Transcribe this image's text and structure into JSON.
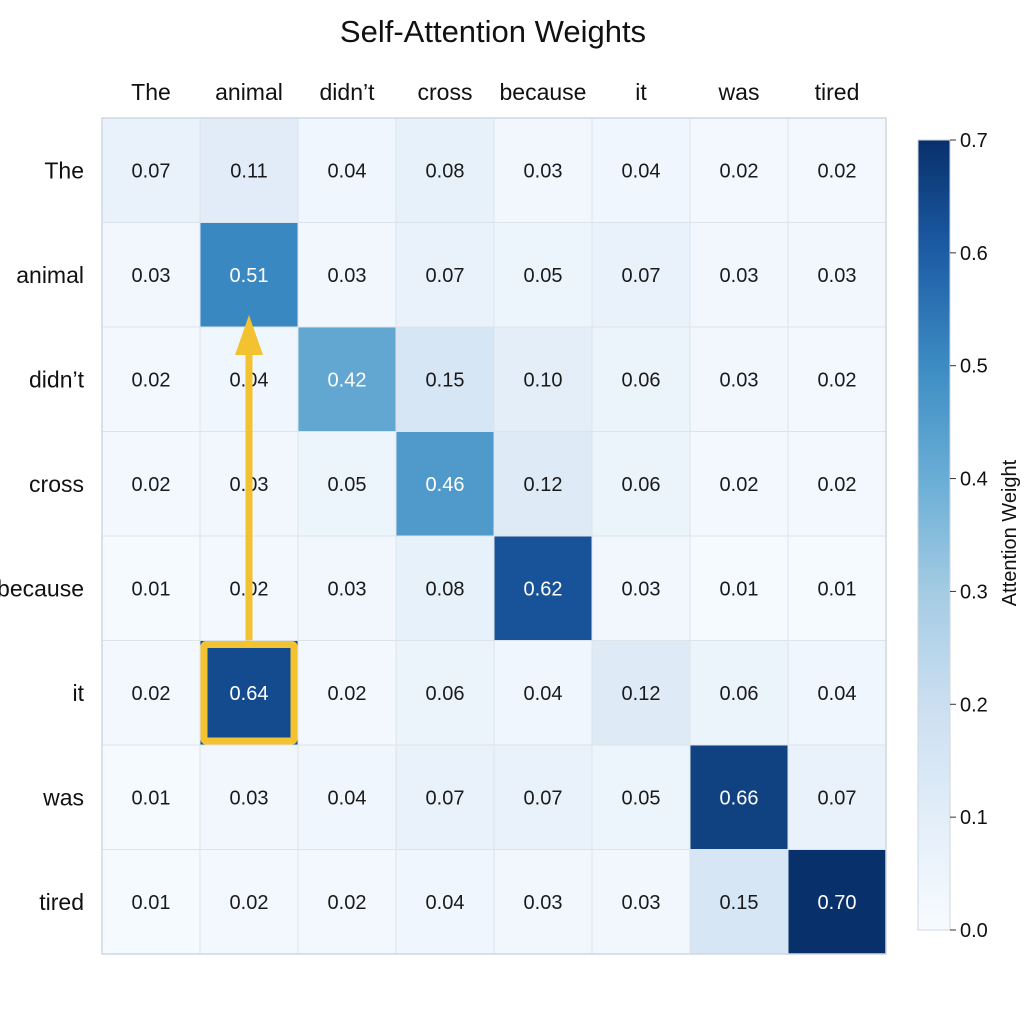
{
  "chart_data": {
    "type": "heatmap",
    "title": "Self-Attention Weights",
    "x_tokens": [
      "The",
      "animal",
      "didn’t",
      "cross",
      "because",
      "it",
      "was",
      "tired"
    ],
    "y_tokens": [
      "The",
      "animal",
      "didn’t",
      "cross",
      "because",
      "it",
      "was",
      "tired"
    ],
    "values": [
      [
        0.07,
        0.11,
        0.04,
        0.08,
        0.03,
        0.04,
        0.02,
        0.02
      ],
      [
        0.03,
        0.51,
        0.03,
        0.07,
        0.05,
        0.07,
        0.03,
        0.03
      ],
      [
        0.02,
        0.04,
        0.42,
        0.15,
        0.1,
        0.06,
        0.03,
        0.02
      ],
      [
        0.02,
        0.03,
        0.05,
        0.46,
        0.12,
        0.06,
        0.02,
        0.02
      ],
      [
        0.01,
        0.02,
        0.03,
        0.08,
        0.62,
        0.03,
        0.01,
        0.01
      ],
      [
        0.02,
        0.64,
        0.02,
        0.06,
        0.04,
        0.12,
        0.06,
        0.04
      ],
      [
        0.01,
        0.03,
        0.04,
        0.07,
        0.07,
        0.05,
        0.66,
        0.07
      ],
      [
        0.01,
        0.02,
        0.02,
        0.04,
        0.03,
        0.03,
        0.15,
        0.7
      ]
    ],
    "value_labels": [
      [
        "0.07",
        "0.11",
        "0.04",
        "0.08",
        "0.03",
        "0.04",
        "0.02",
        "0.02"
      ],
      [
        "0.03",
        "0.51",
        "0.03",
        "0.07",
        "0.05",
        "0.07",
        "0.03",
        "0.03"
      ],
      [
        "0.02",
        "0.04",
        "0.42",
        "0.15",
        "0.10",
        "0.06",
        "0.03",
        "0.02"
      ],
      [
        "0.02",
        "0.03",
        "0.05",
        "0.46",
        "0.12",
        "0.06",
        "0.02",
        "0.02"
      ],
      [
        "0.01",
        "0.02",
        "0.03",
        "0.08",
        "0.62",
        "0.03",
        "0.01",
        "0.01"
      ],
      [
        "0.02",
        "0.64",
        "0.02",
        "0.06",
        "0.04",
        "0.12",
        "0.06",
        "0.04"
      ],
      [
        "0.01",
        "0.03",
        "0.04",
        "0.07",
        "0.07",
        "0.05",
        "0.66",
        "0.07"
      ],
      [
        "0.01",
        "0.02",
        "0.02",
        "0.04",
        "0.03",
        "0.03",
        "0.15",
        "0.70"
      ]
    ],
    "color_scale": {
      "range": [
        0.0,
        0.7
      ],
      "low_color": "#f7fbff",
      "high_color": "#08306b",
      "ticks": [
        "0.0",
        "0.1",
        "0.2",
        "0.3",
        "0.4",
        "0.5",
        "0.6",
        "0.7"
      ],
      "label": "Attention Weight",
      "placement": "right"
    },
    "highlight": {
      "row_token": "it",
      "col_token": "animal",
      "color": "#f2c230",
      "arrow_to_token": "animal",
      "description_hidden": true
    },
    "grid": true
  }
}
